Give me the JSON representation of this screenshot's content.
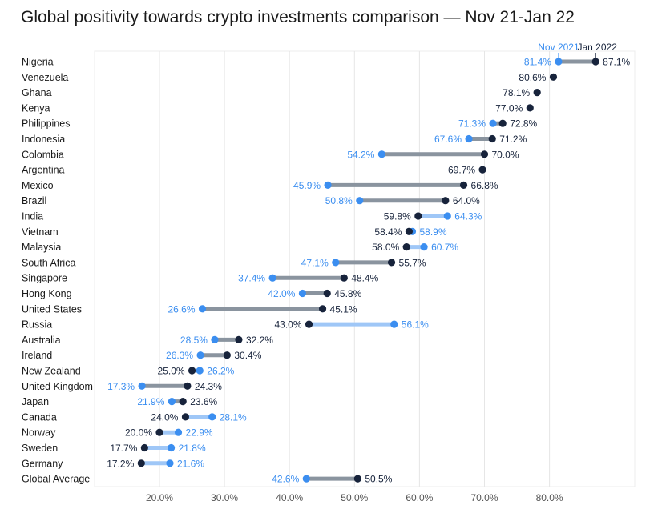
{
  "chart_data": {
    "type": "dumbbell",
    "title": "Global positivity towards crypto investments comparison — Nov 21-Jan 22",
    "legend": [
      "Nov 2021",
      "Jan 2022"
    ],
    "legend_placement": "top-right",
    "colors": {
      "nov": "#3b8ef0",
      "jan": "#17233b",
      "bar_decline": "#8a949f",
      "bar_increase": "#9fc7f7",
      "grid": "#e6e6e6"
    },
    "xlim": [
      10,
      90
    ],
    "xticks": [
      20,
      30,
      40,
      50,
      60,
      70,
      80
    ],
    "xtick_labels": [
      "20.0%",
      "30.0%",
      "40.0%",
      "50.0%",
      "60.0%",
      "70.0%",
      "80.0%"
    ],
    "grid": true,
    "rows": [
      {
        "country": "Nigeria",
        "nov": 81.4,
        "jan": 87.1,
        "nov_label": "81.4%",
        "jan_label": "87.1%"
      },
      {
        "country": "Venezuela",
        "nov": null,
        "jan": 80.6,
        "nov_label": "",
        "jan_label": "80.6%"
      },
      {
        "country": "Ghana",
        "nov": null,
        "jan": 78.1,
        "nov_label": "",
        "jan_label": "78.1%"
      },
      {
        "country": "Kenya",
        "nov": null,
        "jan": 77.0,
        "nov_label": "",
        "jan_label": "77.0%"
      },
      {
        "country": "Philippines",
        "nov": 71.3,
        "jan": 72.8,
        "nov_label": "71.3%",
        "jan_label": "72.8%"
      },
      {
        "country": "Indonesia",
        "nov": 67.6,
        "jan": 71.2,
        "nov_label": "67.6%",
        "jan_label": "71.2%"
      },
      {
        "country": "Colombia",
        "nov": 54.2,
        "jan": 70.0,
        "nov_label": "54.2%",
        "jan_label": "70.0%"
      },
      {
        "country": "Argentina",
        "nov": null,
        "jan": 69.7,
        "nov_label": "",
        "jan_label": "69.7%"
      },
      {
        "country": "Mexico",
        "nov": 45.9,
        "jan": 66.8,
        "nov_label": "45.9%",
        "jan_label": "66.8%"
      },
      {
        "country": "Brazil",
        "nov": 50.8,
        "jan": 64.0,
        "nov_label": "50.8%",
        "jan_label": "64.0%"
      },
      {
        "country": "India",
        "nov": 64.3,
        "jan": 59.8,
        "nov_label": "64.3%",
        "jan_label": "59.8%"
      },
      {
        "country": "Vietnam",
        "nov": 58.9,
        "jan": 58.4,
        "nov_label": "58.9%",
        "jan_label": "58.4%"
      },
      {
        "country": "Malaysia",
        "nov": 60.7,
        "jan": 58.0,
        "nov_label": "60.7%",
        "jan_label": "58.0%"
      },
      {
        "country": "South Africa",
        "nov": 47.1,
        "jan": 55.7,
        "nov_label": "47.1%",
        "jan_label": "55.7%"
      },
      {
        "country": "Singapore",
        "nov": 37.4,
        "jan": 48.4,
        "nov_label": "37.4%",
        "jan_label": "48.4%"
      },
      {
        "country": "Hong Kong",
        "nov": 42.0,
        "jan": 45.8,
        "nov_label": "42.0%",
        "jan_label": "45.8%"
      },
      {
        "country": "United States",
        "nov": 26.6,
        "jan": 45.1,
        "nov_label": "26.6%",
        "jan_label": "45.1%"
      },
      {
        "country": "Russia",
        "nov": 56.1,
        "jan": 43.0,
        "nov_label": "56.1%",
        "jan_label": "43.0%"
      },
      {
        "country": "Australia",
        "nov": 28.5,
        "jan": 32.2,
        "nov_label": "28.5%",
        "jan_label": "32.2%"
      },
      {
        "country": "Ireland",
        "nov": 26.3,
        "jan": 30.4,
        "nov_label": "26.3%",
        "jan_label": "30.4%"
      },
      {
        "country": "New Zealand",
        "nov": 26.2,
        "jan": 25.0,
        "nov_label": "26.2%",
        "jan_label": "25.0%"
      },
      {
        "country": "United Kingdom",
        "nov": 17.3,
        "jan": 24.3,
        "nov_label": "17.3%",
        "jan_label": "24.3%"
      },
      {
        "country": "Japan",
        "nov": 21.9,
        "jan": 23.6,
        "nov_label": "21.9%",
        "jan_label": "23.6%"
      },
      {
        "country": "Canada",
        "nov": 28.1,
        "jan": 24.0,
        "nov_label": "28.1%",
        "jan_label": "24.0%"
      },
      {
        "country": "Norway",
        "nov": 22.9,
        "jan": 20.0,
        "nov_label": "22.9%",
        "jan_label": "20.0%"
      },
      {
        "country": "Sweden",
        "nov": 21.8,
        "jan": 17.7,
        "nov_label": "21.8%",
        "jan_label": "17.7%"
      },
      {
        "country": "Germany",
        "nov": 21.6,
        "jan": 17.2,
        "nov_label": "21.6%",
        "jan_label": "17.2%"
      },
      {
        "country": "Global Average",
        "nov": 42.6,
        "jan": 50.5,
        "nov_label": "42.6%",
        "jan_label": "50.5%"
      }
    ]
  }
}
